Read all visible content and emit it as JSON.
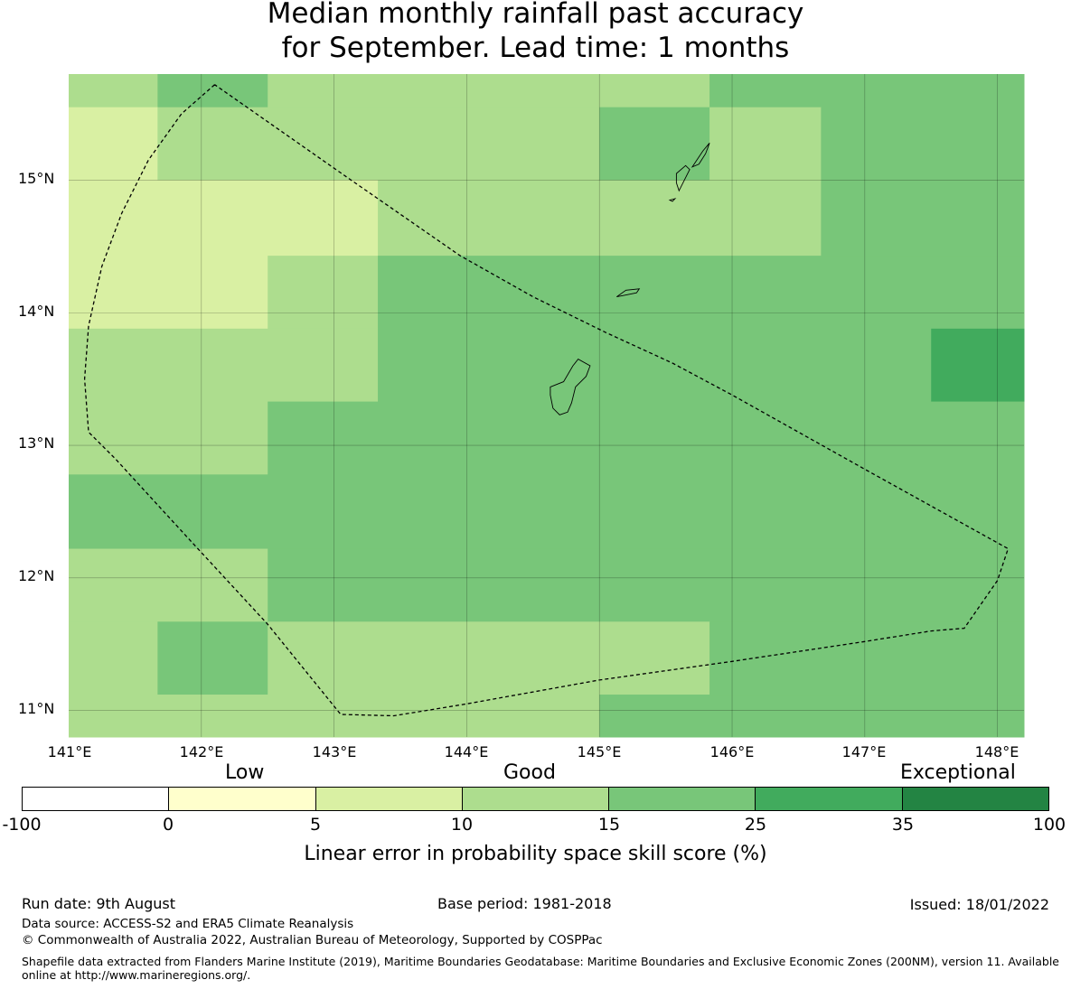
{
  "title": {
    "line1": "Median monthly rainfall past accuracy",
    "line2": "for September. Lead time: 1 months"
  },
  "map": {
    "lon_labels": [
      "141°E",
      "142°E",
      "143°E",
      "144°E",
      "145°E",
      "146°E",
      "147°E",
      "148°E"
    ],
    "lat_labels": [
      "15°N",
      "14°N",
      "13°N",
      "12°N",
      "11°N"
    ],
    "lon_range": [
      141.0,
      148.2
    ],
    "lat_range": [
      10.8,
      15.8
    ],
    "rows": [
      {
        "lat_top": 15.8,
        "lat_bottom": 15.55,
        "cells": [
          [
            141.0,
            141.67,
            "10-15"
          ],
          [
            141.67,
            142.5,
            "15-25"
          ],
          [
            142.5,
            145.0,
            "10-15"
          ],
          [
            145.0,
            145.83,
            "10-15"
          ],
          [
            145.83,
            148.2,
            "15-25"
          ]
        ]
      },
      {
        "lat_top": 15.55,
        "lat_bottom": 15.0,
        "cells": [
          [
            141.0,
            141.67,
            "5-10"
          ],
          [
            141.67,
            145.0,
            "10-15"
          ],
          [
            145.0,
            145.83,
            "15-25"
          ],
          [
            145.83,
            146.67,
            "10-15"
          ],
          [
            146.67,
            148.2,
            "15-25"
          ]
        ]
      },
      {
        "lat_top": 15.0,
        "lat_bottom": 14.43,
        "cells": [
          [
            141.0,
            143.33,
            "5-10"
          ],
          [
            143.33,
            146.67,
            "10-15"
          ],
          [
            146.67,
            148.2,
            "15-25"
          ]
        ]
      },
      {
        "lat_top": 14.43,
        "lat_bottom": 13.88,
        "cells": [
          [
            141.0,
            142.5,
            "5-10"
          ],
          [
            142.5,
            143.33,
            "10-15"
          ],
          [
            143.33,
            148.2,
            "15-25"
          ]
        ]
      },
      {
        "lat_top": 13.88,
        "lat_bottom": 13.33,
        "cells": [
          [
            141.0,
            143.33,
            "10-15"
          ],
          [
            143.33,
            147.5,
            "15-25"
          ],
          [
            147.5,
            148.2,
            "25-35"
          ]
        ]
      },
      {
        "lat_top": 13.33,
        "lat_bottom": 12.78,
        "cells": [
          [
            141.0,
            142.5,
            "10-15"
          ],
          [
            142.5,
            148.2,
            "15-25"
          ]
        ]
      },
      {
        "lat_top": 12.78,
        "lat_bottom": 12.22,
        "cells": [
          [
            141.0,
            148.2,
            "15-25"
          ]
        ]
      },
      {
        "lat_top": 12.22,
        "lat_bottom": 11.67,
        "cells": [
          [
            141.0,
            142.5,
            "10-15"
          ],
          [
            142.5,
            148.2,
            "15-25"
          ]
        ]
      },
      {
        "lat_top": 11.67,
        "lat_bottom": 11.12,
        "cells": [
          [
            141.0,
            141.67,
            "10-15"
          ],
          [
            141.67,
            142.5,
            "15-25"
          ],
          [
            142.5,
            145.83,
            "10-15"
          ],
          [
            145.83,
            148.2,
            "15-25"
          ]
        ]
      },
      {
        "lat_top": 11.12,
        "lat_bottom": 10.8,
        "cells": [
          [
            141.0,
            145.0,
            "10-15"
          ],
          [
            145.0,
            148.2,
            "15-25"
          ]
        ]
      }
    ],
    "eez_boundary": [
      [
        142.1,
        15.72
      ],
      [
        141.85,
        15.5
      ],
      [
        141.6,
        15.15
      ],
      [
        141.4,
        14.75
      ],
      [
        141.25,
        14.35
      ],
      [
        141.15,
        13.9
      ],
      [
        141.12,
        13.5
      ],
      [
        141.15,
        13.1
      ],
      [
        141.35,
        12.9
      ],
      [
        141.9,
        12.3
      ],
      [
        142.5,
        11.65
      ],
      [
        143.05,
        10.97
      ],
      [
        143.45,
        10.96
      ],
      [
        144.0,
        11.05
      ],
      [
        145.0,
        11.23
      ],
      [
        146.0,
        11.37
      ],
      [
        147.0,
        11.52
      ],
      [
        147.5,
        11.6
      ],
      [
        147.75,
        11.62
      ],
      [
        148.0,
        11.98
      ],
      [
        148.08,
        12.22
      ],
      [
        147.0,
        12.82
      ],
      [
        146.0,
        13.38
      ],
      [
        145.55,
        13.62
      ],
      [
        145.05,
        13.85
      ],
      [
        144.5,
        14.12
      ],
      [
        143.95,
        14.43
      ],
      [
        143.1,
        15.02
      ],
      [
        142.1,
        15.72
      ]
    ],
    "islands": [
      [
        [
          144.63,
          13.44
        ],
        [
          144.73,
          13.48
        ],
        [
          144.8,
          13.6
        ],
        [
          144.84,
          13.65
        ],
        [
          144.93,
          13.6
        ],
        [
          144.9,
          13.52
        ],
        [
          144.82,
          13.44
        ],
        [
          144.79,
          13.32
        ],
        [
          144.76,
          13.25
        ],
        [
          144.7,
          13.23
        ],
        [
          144.65,
          13.28
        ],
        [
          144.63,
          13.38
        ]
      ],
      [
        [
          145.13,
          14.12
        ],
        [
          145.2,
          14.17
        ],
        [
          145.3,
          14.18
        ],
        [
          145.28,
          14.15
        ],
        [
          145.18,
          14.13
        ]
      ],
      [
        [
          145.6,
          14.92
        ],
        [
          145.64,
          15.0
        ],
        [
          145.68,
          15.08
        ],
        [
          145.65,
          15.11
        ],
        [
          145.58,
          15.05
        ],
        [
          145.58,
          14.98
        ]
      ],
      [
        [
          145.7,
          15.1
        ],
        [
          145.78,
          15.22
        ],
        [
          145.83,
          15.28
        ],
        [
          145.8,
          15.2
        ],
        [
          145.75,
          15.12
        ]
      ],
      [
        [
          145.53,
          14.85
        ],
        [
          145.57,
          14.86
        ],
        [
          145.55,
          14.84
        ]
      ]
    ]
  },
  "legend": {
    "categories": {
      "low": "Low",
      "good": "Good",
      "exceptional": "Exceptional"
    },
    "bins": [
      {
        "range": "-100-0",
        "color": "#ffffff"
      },
      {
        "range": "0-5",
        "color": "#ffffcc"
      },
      {
        "range": "5-10",
        "color": "#d9f0a3"
      },
      {
        "range": "10-15",
        "color": "#addd8e"
      },
      {
        "range": "15-25",
        "color": "#78c679"
      },
      {
        "range": "25-35",
        "color": "#41ab5d"
      },
      {
        "range": "35-100",
        "color": "#238443"
      }
    ],
    "ticks": [
      "-100",
      "0",
      "5",
      "10",
      "15",
      "25",
      "35",
      "100"
    ],
    "title": "Linear error in probability space skill score (%)"
  },
  "footer": {
    "run_date": "Run date: 9th August",
    "base_period": "Base period: 1981-2018",
    "issued": "Issued: 18/01/2022",
    "data_source": "Data source: ACCESS-S2 and ERA5 Climate Reanalysis",
    "copyright": "© Commonwealth of Australia 2022, Australian Bureau of Meteorology, Supported by COSPPac",
    "shapefile": "Shapefile data extracted from Flanders Marine Institute (2019), Maritime Boundaries Geodatabase: Maritime Boundaries and Exclusive Economic Zones (200NM), version 11. Available online at http://www.marineregions.org/."
  }
}
